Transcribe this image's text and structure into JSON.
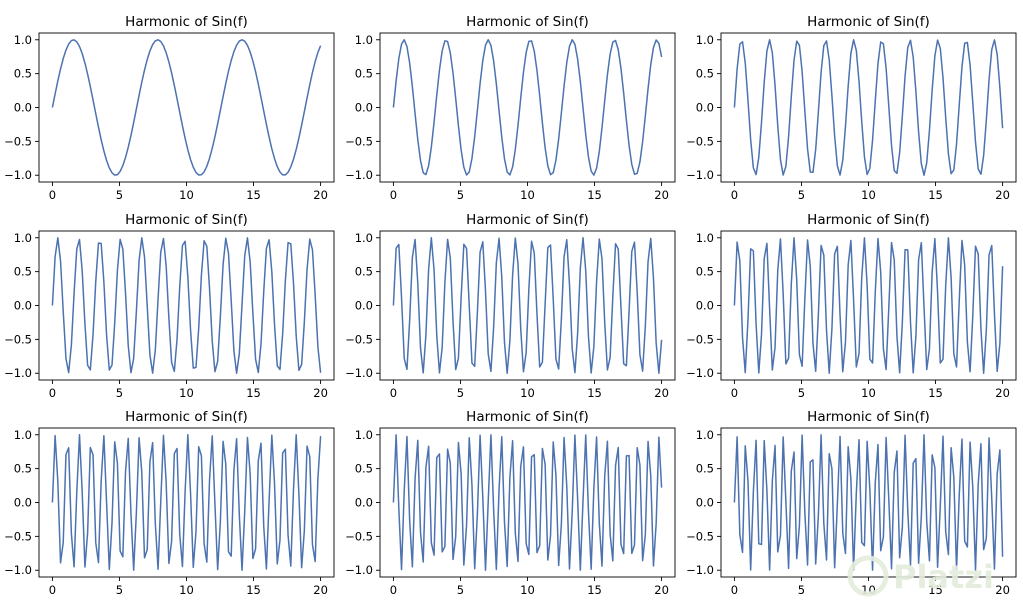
{
  "chart_data": [
    {
      "type": "line",
      "title": "Harmonic of Sin(f)",
      "series": [
        {
          "name": "sin(1x)",
          "harmonic": 1
        }
      ],
      "x": {
        "start": 0,
        "end": 20,
        "samples": 100
      },
      "xlim": [
        -1,
        21
      ],
      "ylim": [
        -1.1,
        1.1
      ],
      "xticks": [
        "0",
        "5",
        "10",
        "15",
        "20"
      ],
      "yticks": [
        "1.0",
        "0.5",
        "0.0",
        "−0.5",
        "−1.0"
      ],
      "grid": false,
      "legend": "none"
    },
    {
      "type": "line",
      "title": "Harmonic of Sin(f)",
      "series": [
        {
          "name": "sin(2x)",
          "harmonic": 2
        }
      ],
      "x": {
        "start": 0,
        "end": 20,
        "samples": 100
      },
      "xlim": [
        -1,
        21
      ],
      "ylim": [
        -1.1,
        1.1
      ],
      "xticks": [
        "0",
        "5",
        "10",
        "15",
        "20"
      ],
      "yticks": [
        "1.0",
        "0.5",
        "0.0",
        "−0.5",
        "−1.0"
      ],
      "grid": false,
      "legend": "none"
    },
    {
      "type": "line",
      "title": "Harmonic of Sin(f)",
      "series": [
        {
          "name": "sin(3x)",
          "harmonic": 3
        }
      ],
      "x": {
        "start": 0,
        "end": 20,
        "samples": 100
      },
      "xlim": [
        -1,
        21
      ],
      "ylim": [
        -1.1,
        1.1
      ],
      "xticks": [
        "0",
        "5",
        "10",
        "15",
        "20"
      ],
      "yticks": [
        "1.0",
        "0.5",
        "0.0",
        "−0.5",
        "−1.0"
      ],
      "grid": false,
      "legend": "none"
    },
    {
      "type": "line",
      "title": "Harmonic of Sin(f)",
      "series": [
        {
          "name": "sin(4x)",
          "harmonic": 4
        }
      ],
      "x": {
        "start": 0,
        "end": 20,
        "samples": 100
      },
      "xlim": [
        -1,
        21
      ],
      "ylim": [
        -1.1,
        1.1
      ],
      "xticks": [
        "0",
        "5",
        "10",
        "15",
        "20"
      ],
      "yticks": [
        "1.0",
        "0.5",
        "0.0",
        "−0.5",
        "−1.0"
      ],
      "grid": false,
      "legend": "none"
    },
    {
      "type": "line",
      "title": "Harmonic of Sin(f)",
      "series": [
        {
          "name": "sin(5x)",
          "harmonic": 5
        }
      ],
      "x": {
        "start": 0,
        "end": 20,
        "samples": 100
      },
      "xlim": [
        -1,
        21
      ],
      "ylim": [
        -1.1,
        1.1
      ],
      "xticks": [
        "0",
        "5",
        "10",
        "15",
        "20"
      ],
      "yticks": [
        "1.0",
        "0.5",
        "0.0",
        "−0.5",
        "−1.0"
      ],
      "grid": false,
      "legend": "none"
    },
    {
      "type": "line",
      "title": "Harmonic of Sin(f)",
      "series": [
        {
          "name": "sin(6x)",
          "harmonic": 6
        }
      ],
      "x": {
        "start": 0,
        "end": 20,
        "samples": 100
      },
      "xlim": [
        -1,
        21
      ],
      "ylim": [
        -1.1,
        1.1
      ],
      "xticks": [
        "0",
        "5",
        "10",
        "15",
        "20"
      ],
      "yticks": [
        "1.0",
        "0.5",
        "0.0",
        "−0.5",
        "−1.0"
      ],
      "grid": false,
      "legend": "none"
    },
    {
      "type": "line",
      "title": "Harmonic of Sin(f)",
      "series": [
        {
          "name": "sin(7x)",
          "harmonic": 7
        }
      ],
      "x": {
        "start": 0,
        "end": 20,
        "samples": 100
      },
      "xlim": [
        -1,
        21
      ],
      "ylim": [
        -1.1,
        1.1
      ],
      "xticks": [
        "0",
        "5",
        "10",
        "15",
        "20"
      ],
      "yticks": [
        "1.0",
        "0.5",
        "0.0",
        "−0.5",
        "−1.0"
      ],
      "grid": false,
      "legend": "none"
    },
    {
      "type": "line",
      "title": "Harmonic of Sin(f)",
      "series": [
        {
          "name": "sin(8x)",
          "harmonic": 8
        }
      ],
      "x": {
        "start": 0,
        "end": 20,
        "samples": 100
      },
      "xlim": [
        -1,
        21
      ],
      "ylim": [
        -1.1,
        1.1
      ],
      "xticks": [
        "0",
        "5",
        "10",
        "15",
        "20"
      ],
      "yticks": [
        "1.0",
        "0.5",
        "0.0",
        "−0.5",
        "−1.0"
      ],
      "grid": false,
      "legend": "none"
    },
    {
      "type": "line",
      "title": "Harmonic of Sin(f)",
      "series": [
        {
          "name": "sin(9x)",
          "harmonic": 9
        }
      ],
      "x": {
        "start": 0,
        "end": 20,
        "samples": 100
      },
      "xlim": [
        -1,
        21
      ],
      "ylim": [
        -1.1,
        1.1
      ],
      "xticks": [
        "0",
        "5",
        "10",
        "15",
        "20"
      ],
      "yticks": [
        "1.0",
        "0.5",
        "0.0",
        "−0.5",
        "−1.0"
      ],
      "grid": false,
      "legend": "none"
    }
  ],
  "colors": {
    "line": "#4c72b0",
    "axes": "#000000",
    "text": "#000000",
    "background": "#ffffff",
    "watermark": "#dfe9d6"
  },
  "watermark": {
    "text": "Platzi"
  }
}
